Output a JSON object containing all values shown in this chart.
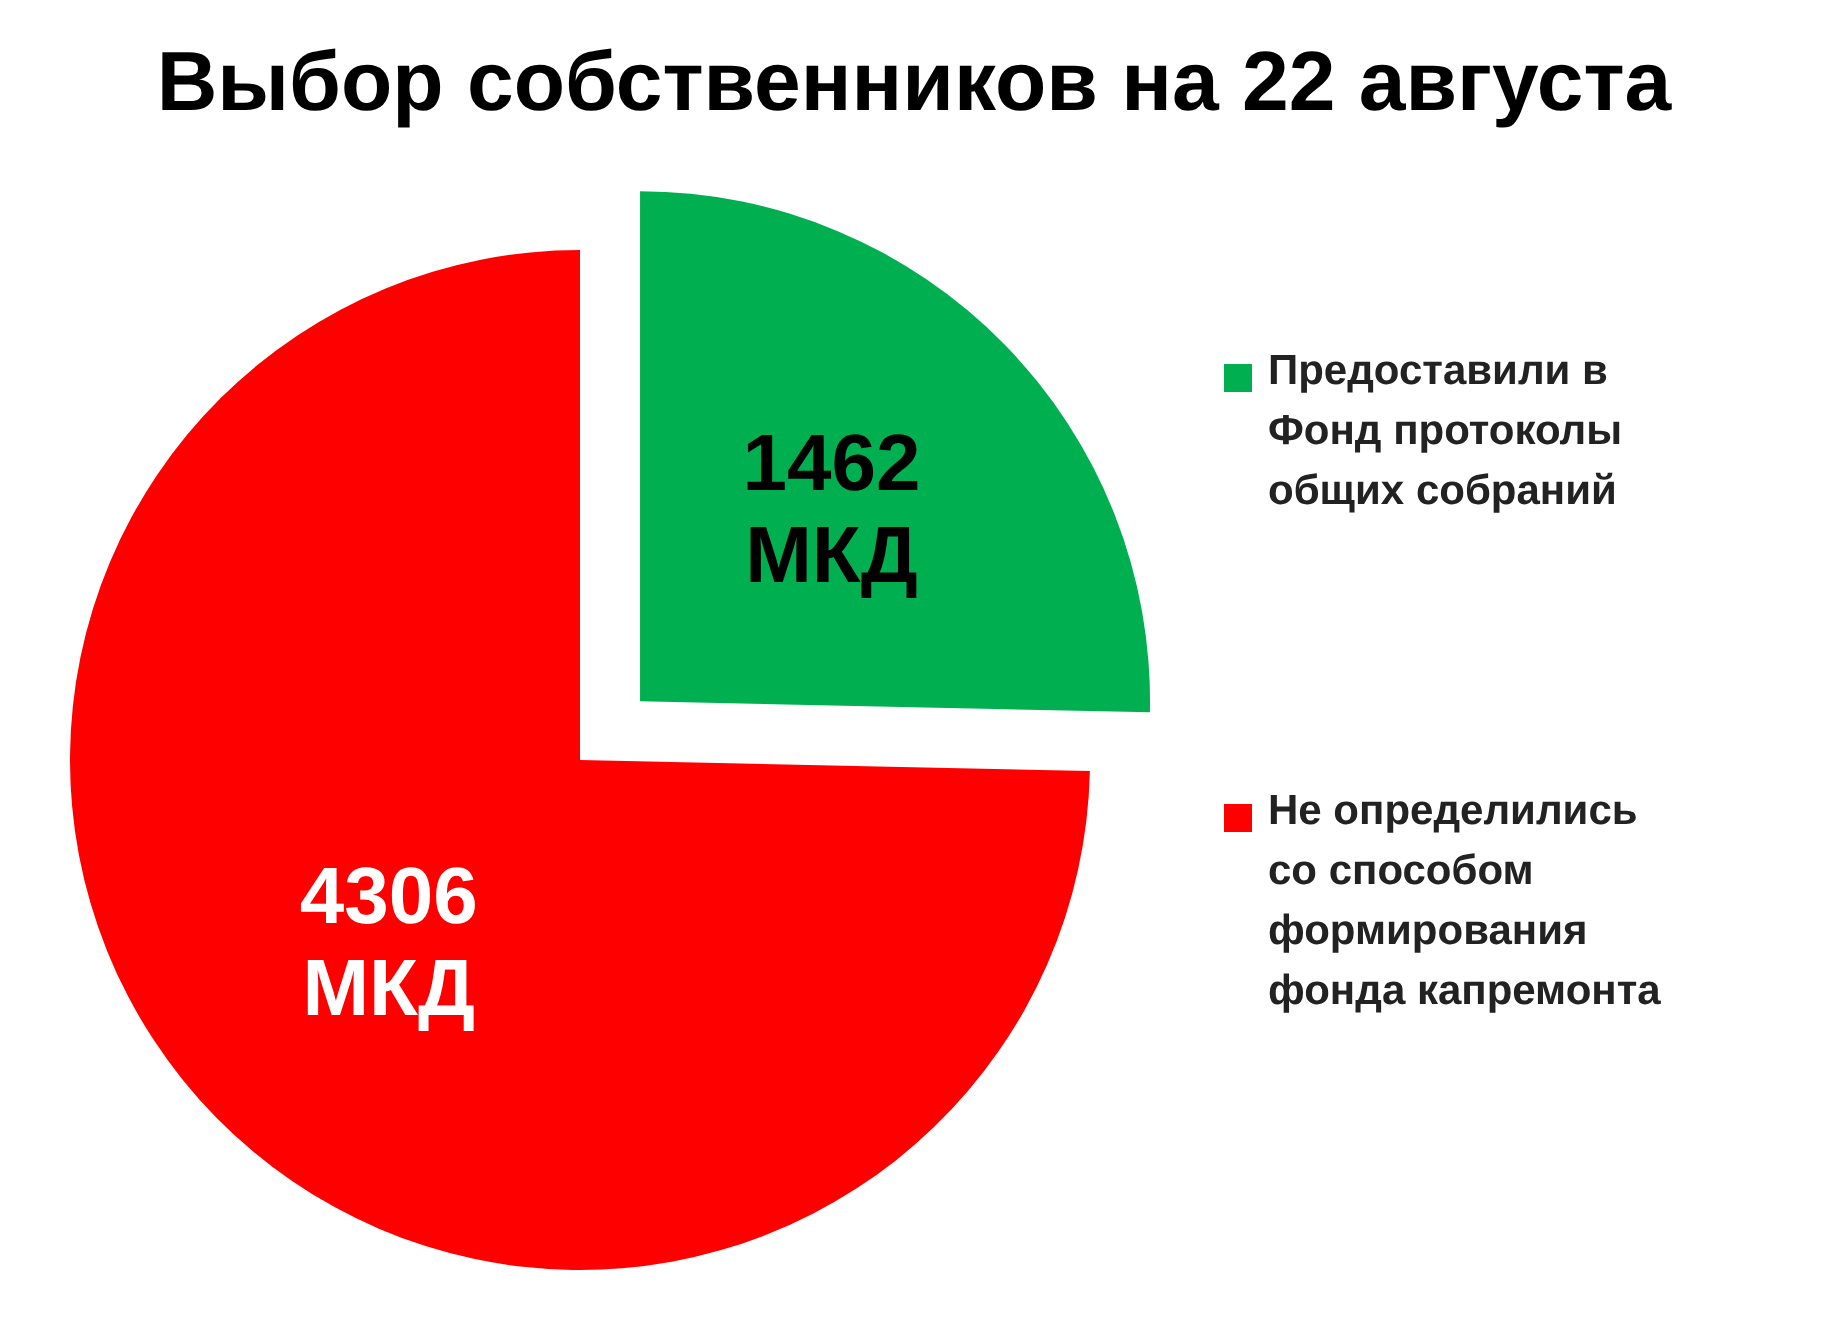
{
  "chart_data": {
    "type": "pie",
    "title": "Выбор собственников на 22 августа",
    "categories": [
      "Предоставили в Фонд протоколы общих собраний",
      "Не определились со способом формирования фонда капремонта"
    ],
    "values": [
      1462,
      4306
    ],
    "colors": [
      "#00b050",
      "#ff0000"
    ],
    "value_labels": [
      "1462 МКД",
      "4306 МКД"
    ],
    "legend": "right"
  }
}
